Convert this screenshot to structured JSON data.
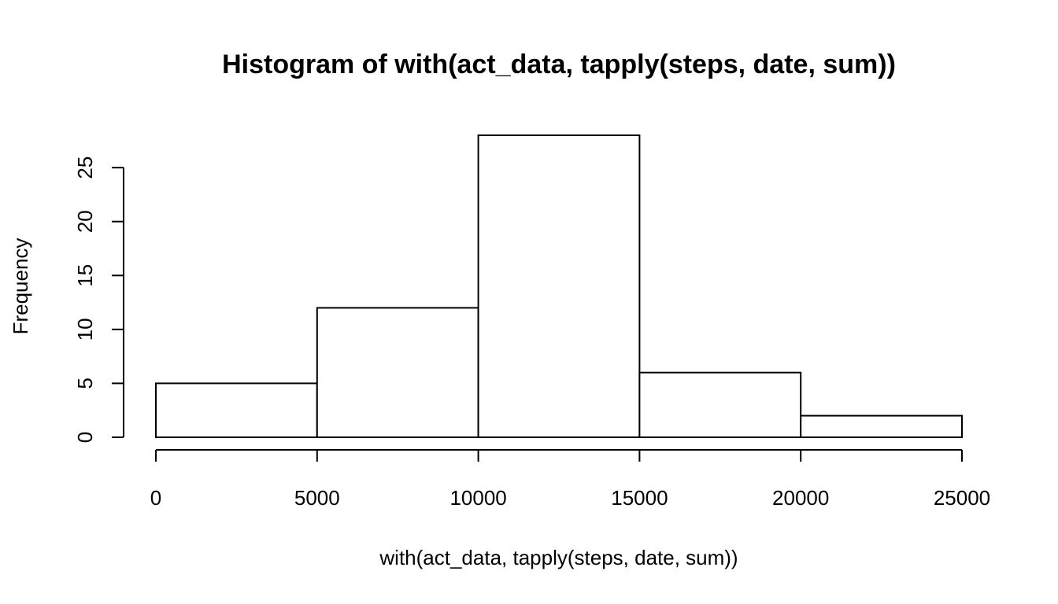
{
  "chart_data": {
    "type": "bar",
    "title": "Histogram of with(act_data, tapply(steps, date, sum))",
    "xlabel": "with(act_data, tapply(steps, date, sum))",
    "ylabel": "Frequency",
    "bins": [
      {
        "start": 0,
        "end": 5000,
        "count": 5
      },
      {
        "start": 5000,
        "end": 10000,
        "count": 12
      },
      {
        "start": 10000,
        "end": 15000,
        "count": 28
      },
      {
        "start": 15000,
        "end": 20000,
        "count": 6
      },
      {
        "start": 20000,
        "end": 25000,
        "count": 2
      }
    ],
    "xlim": [
      0,
      25000
    ],
    "ylim": [
      0,
      28
    ],
    "x_ticks": [
      0,
      5000,
      10000,
      15000,
      20000,
      25000
    ],
    "x_tick_labels": [
      "0",
      "5000",
      "10000",
      "15000",
      "20000",
      "25000"
    ],
    "y_ticks": [
      0,
      5,
      10,
      15,
      20,
      25
    ],
    "y_tick_labels": [
      "0",
      "5",
      "10",
      "15",
      "20",
      "25"
    ],
    "grid": false,
    "legend": "none",
    "bar_fill": "#ffffff",
    "bar_stroke": "#000000"
  }
}
